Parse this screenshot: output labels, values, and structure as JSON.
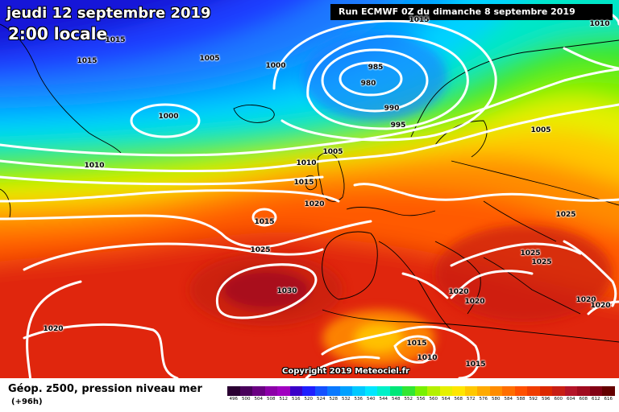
{
  "header": {
    "date": "jeudi 12 septembre 2019",
    "time": "2:00 locale",
    "run": "Run ECMWF 0Z du dimanche 8 septembre 2019"
  },
  "copyright": "Copyright 2019 Meteociel.fr",
  "footer": {
    "title": "Géop. z500, pression niveau mer",
    "range": "(+96h)"
  },
  "isobar_labels": [
    {
      "id": "1015-nw",
      "text": "1015"
    },
    {
      "id": "1015-w",
      "text": "1015"
    },
    {
      "id": "1005-n",
      "text": "1005"
    },
    {
      "id": "1000-n",
      "text": "1000"
    },
    {
      "id": "1015-top",
      "text": "1015"
    },
    {
      "id": "1010-ne",
      "text": "1010"
    },
    {
      "id": "985",
      "text": "985"
    },
    {
      "id": "980",
      "text": "980"
    },
    {
      "id": "990",
      "text": "990"
    },
    {
      "id": "995",
      "text": "995"
    },
    {
      "id": "1000-iceland",
      "text": "1000"
    },
    {
      "id": "1005-scand",
      "text": "1005"
    },
    {
      "id": "1010-w",
      "text": "1010"
    },
    {
      "id": "1005-uk",
      "text": "1005"
    },
    {
      "id": "1010-uk",
      "text": "1010"
    },
    {
      "id": "1015-uk",
      "text": "1015"
    },
    {
      "id": "1020-fr",
      "text": "1020"
    },
    {
      "id": "1015-atl",
      "text": "1015"
    },
    {
      "id": "1025-atl",
      "text": "1025"
    },
    {
      "id": "1030",
      "text": "1030"
    },
    {
      "id": "1025-e",
      "text": "1025"
    },
    {
      "id": "1025-balk1",
      "text": "1025"
    },
    {
      "id": "1025-balk2",
      "text": "1025"
    },
    {
      "id": "1020-it1",
      "text": "1020"
    },
    {
      "id": "1020-it2",
      "text": "1020"
    },
    {
      "id": "1020-gr1",
      "text": "1020"
    },
    {
      "id": "1020-gr2",
      "text": "1020"
    },
    {
      "id": "1020-sw",
      "text": "1020"
    },
    {
      "id": "1015-af",
      "text": "1015"
    },
    {
      "id": "1010-af",
      "text": "1010"
    },
    {
      "id": "1015-af2",
      "text": "1015"
    }
  ],
  "scale": {
    "labels": [
      "496",
      "500",
      "504",
      "508",
      "512",
      "516",
      "520",
      "524",
      "528",
      "532",
      "536",
      "540",
      "544",
      "548",
      "552",
      "556",
      "560",
      "564",
      "568",
      "572",
      "576",
      "580",
      "584",
      "588",
      "592",
      "596",
      "600",
      "604",
      "608",
      "612",
      "616"
    ],
    "colors": [
      "#2a0032",
      "#48005a",
      "#6a0082",
      "#8c00a8",
      "#a000c0",
      "#3a00c8",
      "#1e1eff",
      "#1450ff",
      "#0a78ff",
      "#00a0ff",
      "#00c8ff",
      "#00e6ff",
      "#00f0c8",
      "#00e678",
      "#32e632",
      "#78f000",
      "#b4f000",
      "#e6f000",
      "#ffe600",
      "#ffc800",
      "#ffaa00",
      "#ff8c00",
      "#ff6e00",
      "#ff5000",
      "#f03c00",
      "#dc2800",
      "#c81e14",
      "#b41428",
      "#a00a1e",
      "#820014",
      "#640000"
    ]
  }
}
